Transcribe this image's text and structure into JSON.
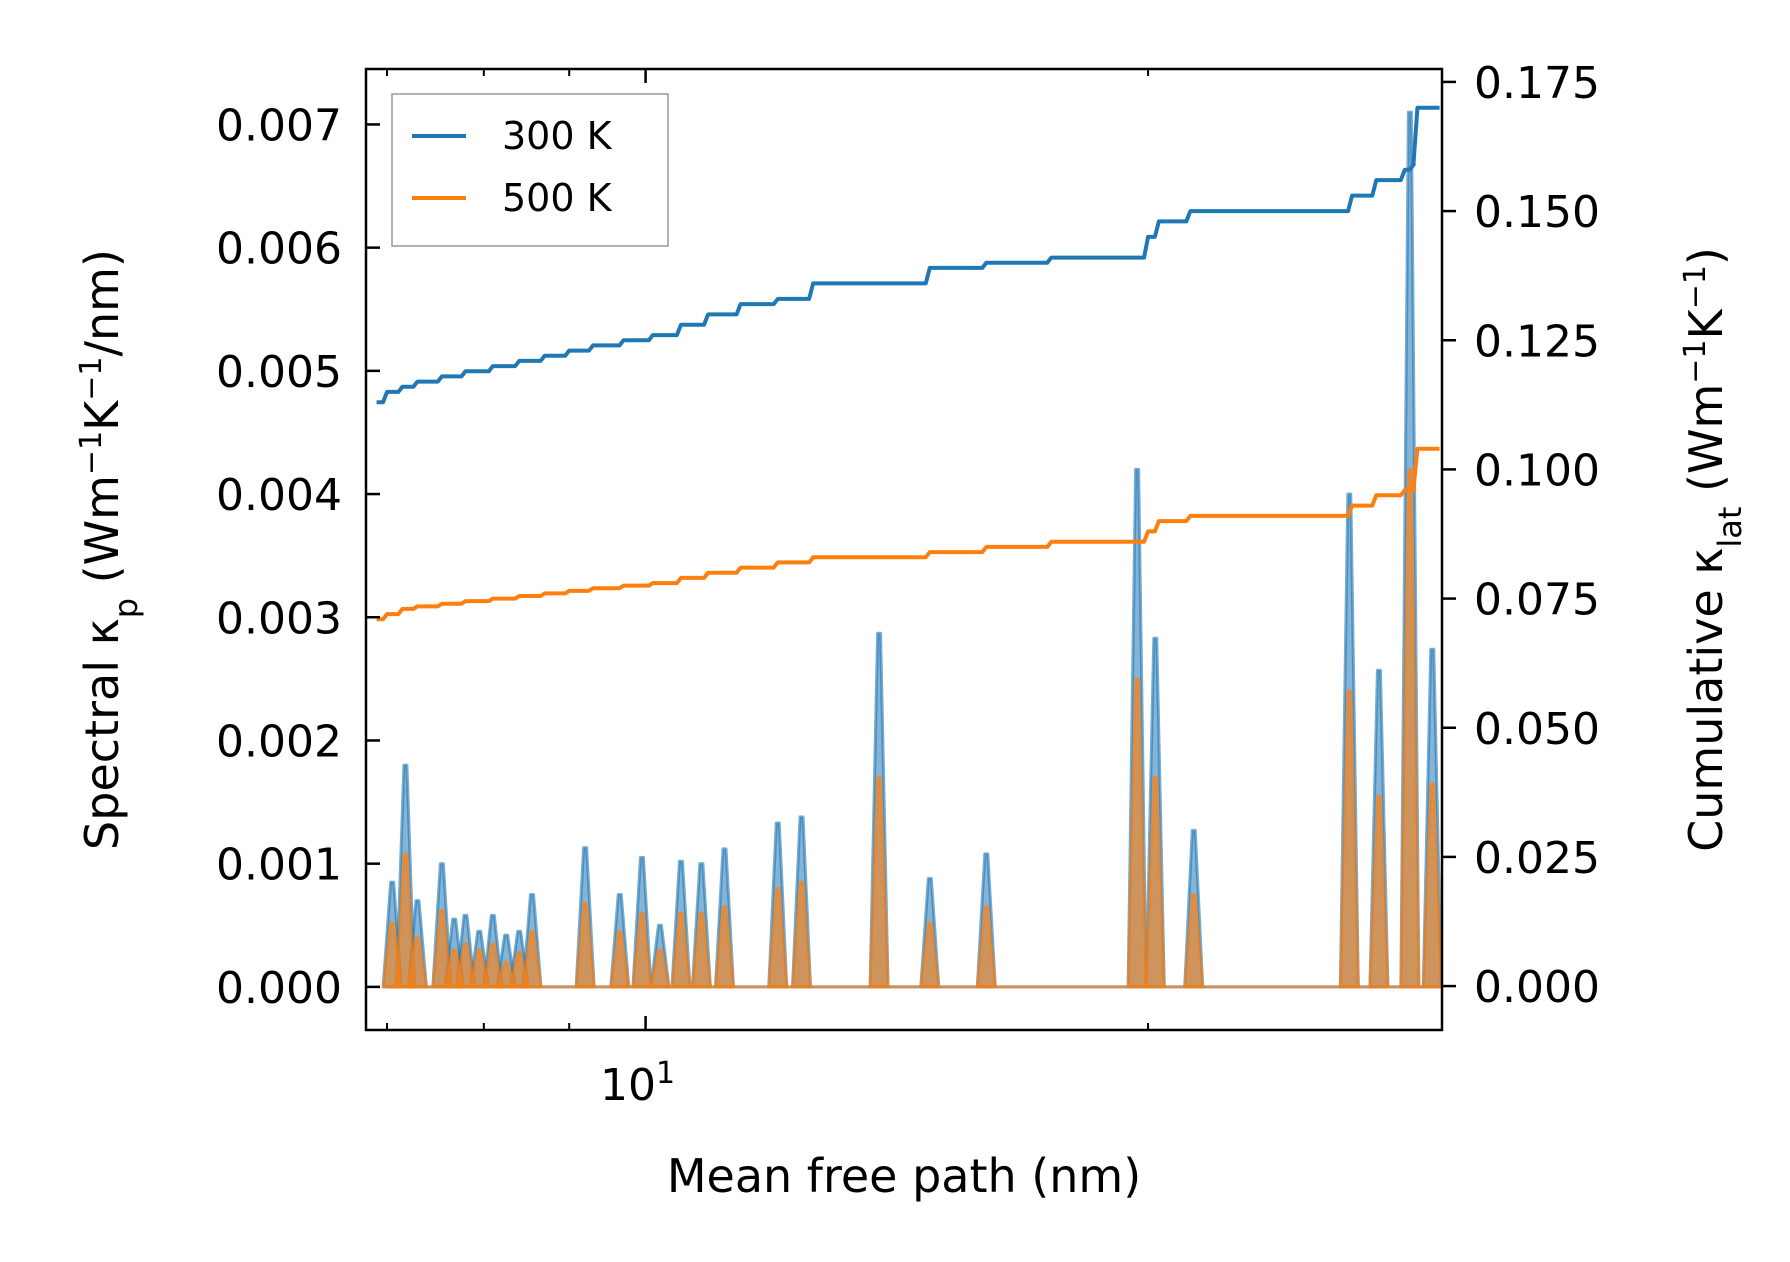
{
  "chart_data": {
    "type": "area",
    "title": "",
    "xlabel": "Mean free path (nm)",
    "xscale": "log",
    "xlim": [
      6.8,
      30.0
    ],
    "x_ticks": [
      {
        "value": 10,
        "base": "10",
        "exponent": "1"
      }
    ],
    "ylabel_left": {
      "prefix": "Spectral κ",
      "sub": "p",
      "mid": " (Wm",
      "sup1": "−1",
      "k": "K",
      "sup2": "−1",
      "tail": "/nm)"
    },
    "ylabel_right": {
      "prefix": "Cumulative κ",
      "sub": "lat",
      "mid": " (Wm",
      "sup1": "−1",
      "k": "K",
      "sup2": "−1",
      "tail": ")"
    },
    "ylim_left": [
      -0.00035,
      0.00745
    ],
    "ylim_right": [
      -0.0085,
      0.1775
    ],
    "yticks_left": [
      "0.000",
      "0.001",
      "0.002",
      "0.003",
      "0.004",
      "0.005",
      "0.006",
      "0.007"
    ],
    "yticks_right": [
      "0.000",
      "0.025",
      "0.050",
      "0.075",
      "0.100",
      "0.125",
      "0.150",
      "0.175"
    ],
    "legend": {
      "position": "top-left",
      "entries": [
        {
          "label": "300 K",
          "color": "#1f77b4"
        },
        {
          "label": "500 K",
          "color": "#ff7f0e"
        }
      ]
    },
    "spectral_series": [
      {
        "name": "300 K",
        "color": "#1f77b4",
        "axis": "left",
        "peaks": [
          [
            7.05,
            0.00085
          ],
          [
            7.18,
            0.0018
          ],
          [
            7.3,
            0.0007
          ],
          [
            7.55,
            0.001
          ],
          [
            7.68,
            0.00055
          ],
          [
            7.8,
            0.00058
          ],
          [
            7.95,
            0.00045
          ],
          [
            8.1,
            0.00058
          ],
          [
            8.25,
            0.00042
          ],
          [
            8.4,
            0.00045
          ],
          [
            8.55,
            0.00075
          ],
          [
            9.2,
            0.00113
          ],
          [
            9.65,
            0.00075
          ],
          [
            9.95,
            0.00105
          ],
          [
            10.2,
            0.0005
          ],
          [
            10.5,
            0.00102
          ],
          [
            10.8,
            0.001
          ],
          [
            11.15,
            0.00112
          ],
          [
            12.0,
            0.00133
          ],
          [
            12.4,
            0.00138
          ],
          [
            13.8,
            0.00287
          ],
          [
            14.8,
            0.00088
          ],
          [
            16.0,
            0.00108
          ],
          [
            19.7,
            0.0042
          ],
          [
            20.2,
            0.00283
          ],
          [
            21.3,
            0.00127
          ],
          [
            26.4,
            0.004
          ],
          [
            27.5,
            0.00257
          ],
          [
            29.6,
            0.00274
          ],
          [
            28.7,
            0.0071
          ]
        ]
      },
      {
        "name": "500 K",
        "color": "#ff7f0e",
        "axis": "left",
        "peaks": [
          [
            7.05,
            0.00052
          ],
          [
            7.18,
            0.00108
          ],
          [
            7.3,
            0.0004
          ],
          [
            7.55,
            0.00062
          ],
          [
            7.68,
            0.0003
          ],
          [
            7.8,
            0.00035
          ],
          [
            7.95,
            0.0003
          ],
          [
            8.1,
            0.00035
          ],
          [
            8.25,
            0.0002
          ],
          [
            8.4,
            0.00028
          ],
          [
            8.55,
            0.00045
          ],
          [
            9.2,
            0.00068
          ],
          [
            9.65,
            0.00045
          ],
          [
            9.95,
            0.0006
          ],
          [
            10.2,
            0.0003
          ],
          [
            10.5,
            0.0006
          ],
          [
            10.8,
            0.0006
          ],
          [
            11.15,
            0.00065
          ],
          [
            12.0,
            0.0008
          ],
          [
            12.4,
            0.00085
          ],
          [
            13.8,
            0.0017
          ],
          [
            14.8,
            0.00052
          ],
          [
            16.0,
            0.00065
          ],
          [
            19.7,
            0.0025
          ],
          [
            20.2,
            0.0017
          ],
          [
            21.3,
            0.00075
          ],
          [
            26.4,
            0.0024
          ],
          [
            27.5,
            0.00155
          ],
          [
            29.6,
            0.00165
          ],
          [
            28.7,
            0.0042
          ]
        ]
      }
    ],
    "cumulative_series": [
      {
        "name": "300 K",
        "color": "#1f77b4",
        "axis": "right",
        "x": [
          6.9,
          7.0,
          7.15,
          7.3,
          7.55,
          7.8,
          8.1,
          8.4,
          8.7,
          9.0,
          9.3,
          9.7,
          10.1,
          10.5,
          10.9,
          11.4,
          12.0,
          12.6,
          13.6,
          14.8,
          16.0,
          17.5,
          19.6,
          20.0,
          20.3,
          21.2,
          23.0,
          26.1,
          26.5,
          27.4,
          28.5,
          28.85,
          29.0,
          29.9
        ],
        "y": [
          0.113,
          0.115,
          0.116,
          0.117,
          0.118,
          0.119,
          0.12,
          0.121,
          0.122,
          0.123,
          0.124,
          0.125,
          0.126,
          0.128,
          0.13,
          0.132,
          0.133,
          0.136,
          0.136,
          0.139,
          0.14,
          0.141,
          0.141,
          0.145,
          0.148,
          0.15,
          0.15,
          0.15,
          0.153,
          0.156,
          0.158,
          0.159,
          0.17,
          0.17
        ]
      },
      {
        "name": "500 K",
        "color": "#ff7f0e",
        "axis": "right",
        "x": [
          6.9,
          7.0,
          7.15,
          7.3,
          7.55,
          7.8,
          8.1,
          8.4,
          8.7,
          9.0,
          9.3,
          9.7,
          10.1,
          10.5,
          10.9,
          11.4,
          12.0,
          12.6,
          13.6,
          14.8,
          16.0,
          17.5,
          19.6,
          20.0,
          20.3,
          21.2,
          23.0,
          26.1,
          26.5,
          27.4,
          28.5,
          28.85,
          29.0,
          29.9
        ],
        "y": [
          0.071,
          0.072,
          0.073,
          0.0735,
          0.074,
          0.0745,
          0.075,
          0.0755,
          0.076,
          0.0765,
          0.077,
          0.0775,
          0.078,
          0.079,
          0.08,
          0.081,
          0.082,
          0.083,
          0.083,
          0.084,
          0.085,
          0.086,
          0.086,
          0.088,
          0.09,
          0.091,
          0.091,
          0.091,
          0.093,
          0.095,
          0.096,
          0.096,
          0.104,
          0.104
        ]
      }
    ]
  }
}
